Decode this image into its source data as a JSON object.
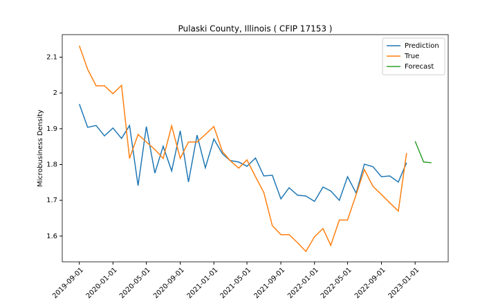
{
  "chart_data": {
    "type": "line",
    "title": "Pulaski County, Illinois ( CFIP 17153 )",
    "y_label": "Microbusiness Density",
    "x": [
      "2019-09-01",
      "2019-10-01",
      "2019-11-01",
      "2019-12-01",
      "2020-01-01",
      "2020-02-01",
      "2020-03-01",
      "2020-04-01",
      "2020-05-01",
      "2020-06-01",
      "2020-07-01",
      "2020-08-01",
      "2020-09-01",
      "2020-10-01",
      "2020-11-01",
      "2020-12-01",
      "2021-01-01",
      "2021-02-01",
      "2021-03-01",
      "2021-04-01",
      "2021-05-01",
      "2021-06-01",
      "2021-07-01",
      "2021-08-01",
      "2021-09-01",
      "2021-10-01",
      "2021-11-01",
      "2021-12-01",
      "2022-01-01",
      "2022-02-01",
      "2022-03-01",
      "2022-04-01",
      "2022-05-01",
      "2022-06-01",
      "2022-07-01",
      "2022-08-01",
      "2022-09-01",
      "2022-10-01",
      "2022-11-01",
      "2022-12-01",
      "2023-01-01",
      "2023-02-01",
      "2023-03-01"
    ],
    "series": [
      {
        "name": "Prediction",
        "color": "#1f77b4",
        "values": [
          1.969,
          1.904,
          1.909,
          1.88,
          1.902,
          1.873,
          1.909,
          1.741,
          1.906,
          1.776,
          1.851,
          1.782,
          1.894,
          1.751,
          1.882,
          1.791,
          1.871,
          1.83,
          1.811,
          1.807,
          1.795,
          1.818,
          1.768,
          1.77,
          1.704,
          1.735,
          1.714,
          1.712,
          1.697,
          1.737,
          1.726,
          1.7,
          1.766,
          1.72,
          1.801,
          1.794,
          1.766,
          1.768,
          1.751,
          1.805,
          null,
          null,
          null
        ]
      },
      {
        "name": "True",
        "color": "#ff7f0e",
        "values": [
          2.132,
          2.066,
          2.02,
          2.02,
          1.998,
          2.021,
          1.817,
          1.884,
          1.863,
          1.842,
          1.817,
          1.908,
          1.817,
          1.863,
          1.863,
          1.884,
          1.906,
          1.836,
          1.811,
          1.79,
          1.813,
          1.766,
          1.722,
          1.629,
          1.604,
          1.604,
          1.581,
          1.557,
          1.598,
          1.621,
          1.574,
          1.645,
          1.645,
          1.716,
          1.786,
          1.739,
          1.716,
          1.693,
          1.67,
          1.832,
          null,
          null,
          null
        ]
      },
      {
        "name": "Forecast",
        "color": "#2ca02c",
        "values": [
          null,
          null,
          null,
          null,
          null,
          null,
          null,
          null,
          null,
          null,
          null,
          null,
          null,
          null,
          null,
          null,
          null,
          null,
          null,
          null,
          null,
          null,
          null,
          null,
          null,
          null,
          null,
          null,
          null,
          null,
          null,
          null,
          null,
          null,
          null,
          null,
          null,
          null,
          null,
          null,
          1.865,
          1.807,
          1.805
        ]
      }
    ],
    "xlim": [
      "2019-07-01",
      "2023-05-01"
    ],
    "xticks": [
      "2019-09-01",
      "2020-01-01",
      "2020-05-01",
      "2020-09-01",
      "2021-01-01",
      "2021-05-01",
      "2021-09-01",
      "2022-01-01",
      "2022-05-01",
      "2022-09-01",
      "2023-01-01"
    ],
    "ylim": [
      1.528,
      2.163
    ],
    "yticks": [
      1.6,
      1.7,
      1.8,
      1.9,
      2.0,
      2.1
    ],
    "legend": "upper right",
    "grid": false
  }
}
